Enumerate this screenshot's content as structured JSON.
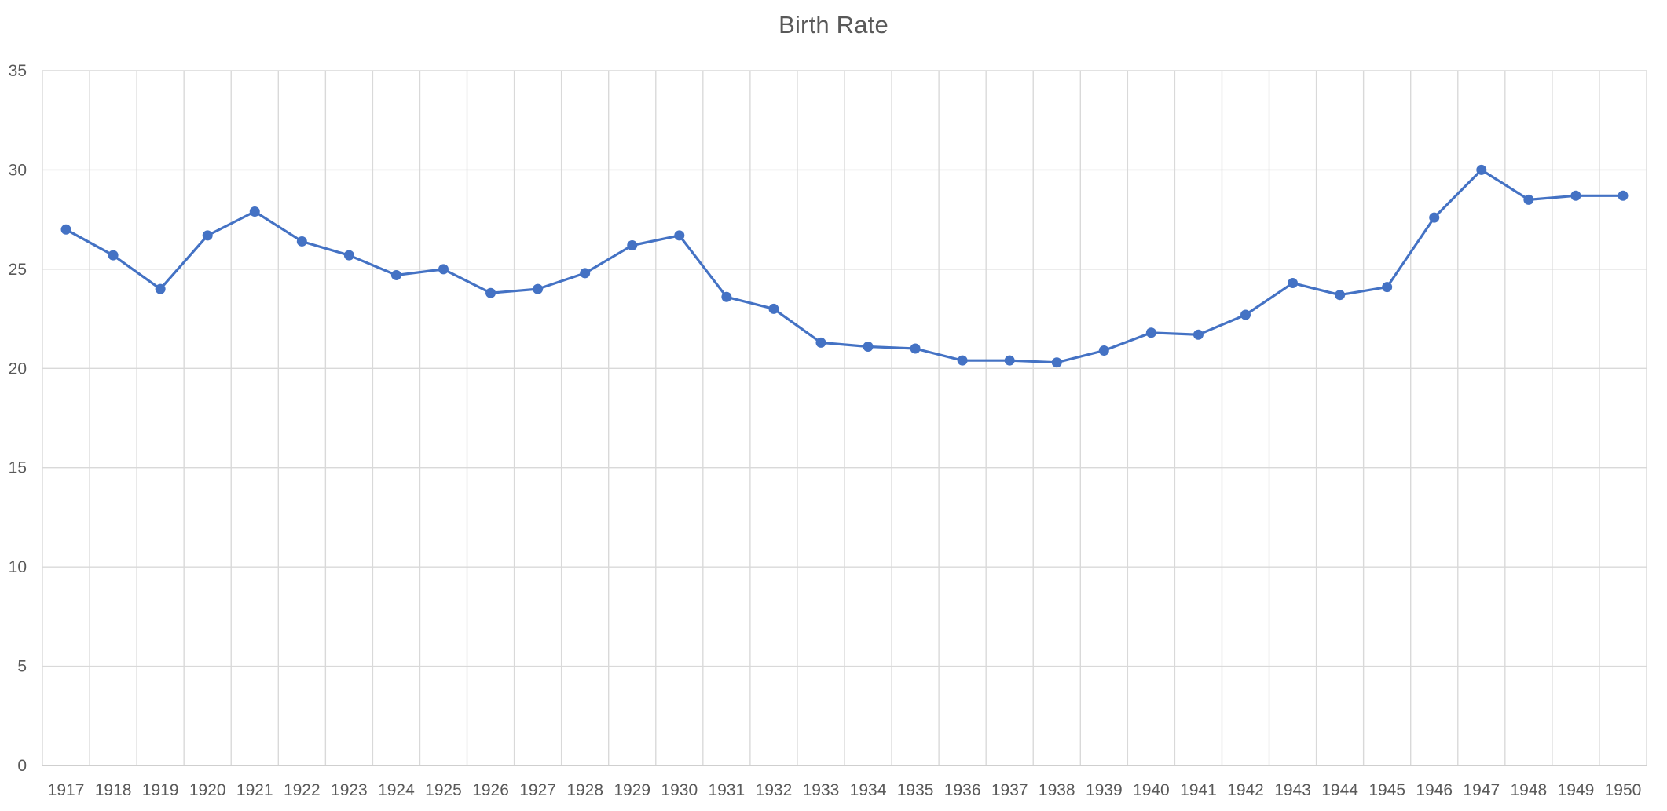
{
  "chart_data": {
    "type": "line",
    "title": "Birth Rate",
    "xlabel": "",
    "ylabel": "",
    "categories": [
      "1917",
      "1918",
      "1919",
      "1920",
      "1921",
      "1922",
      "1923",
      "1924",
      "1925",
      "1926",
      "1927",
      "1928",
      "1929",
      "1930",
      "1931",
      "1932",
      "1933",
      "1934",
      "1935",
      "1936",
      "1937",
      "1938",
      "1939",
      "1940",
      "1941",
      "1942",
      "1943",
      "1944",
      "1945",
      "1946",
      "1947",
      "1948",
      "1949",
      "1950"
    ],
    "series": [
      {
        "values": [
          27.0,
          25.7,
          24.0,
          26.7,
          27.9,
          26.4,
          25.7,
          24.7,
          25.0,
          23.8,
          24.0,
          24.8,
          26.2,
          26.7,
          23.6,
          23.0,
          21.3,
          21.1,
          21.0,
          20.4,
          20.4,
          20.3,
          20.9,
          21.8,
          21.7,
          22.7,
          24.3,
          23.7,
          24.1,
          27.6,
          30.0,
          28.5,
          28.7,
          28.7
        ],
        "color": "#4472c4"
      }
    ],
    "ylim": [
      0,
      35
    ],
    "yticks": [
      0,
      5,
      10,
      15,
      20,
      25,
      30,
      35
    ],
    "grid": {
      "horizontal": true,
      "vertical": true
    },
    "legend": "none",
    "markers": true
  }
}
